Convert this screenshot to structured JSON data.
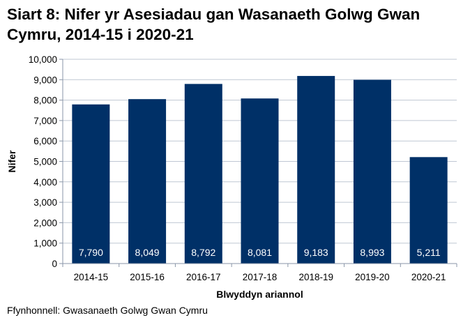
{
  "chart_data": {
    "type": "bar",
    "title": "Siart 8: Nifer yr Asesiadau gan Wasanaeth Golwg Gwan Cymru, 2014-15 i 2020-21",
    "xlabel": "Blwyddyn ariannol",
    "ylabel": "Nifer",
    "categories": [
      "2014-15",
      "2015-16",
      "2016-17",
      "2017-18",
      "2018-19",
      "2019-20",
      "2020-21"
    ],
    "values": [
      7790,
      8049,
      8792,
      8081,
      9183,
      8993,
      5211
    ],
    "data_labels": [
      "7,790",
      "8,049",
      "8,792",
      "8,081",
      "9,183",
      "8,993",
      "5,211"
    ],
    "ylim": [
      0,
      10000
    ],
    "yticks": [
      0,
      1000,
      2000,
      3000,
      4000,
      5000,
      6000,
      7000,
      8000,
      9000,
      10000
    ],
    "ytick_labels": [
      "0",
      "1,000",
      "2,000",
      "3,000",
      "4,000",
      "5,000",
      "6,000",
      "7,000",
      "8,000",
      "9,000",
      "10,000"
    ],
    "grid": true,
    "bar_color": "#003067",
    "grid_color": "#bfc7d3",
    "source": "Ffynhonnell: Gwasanaeth Golwg Gwan Cymru"
  }
}
